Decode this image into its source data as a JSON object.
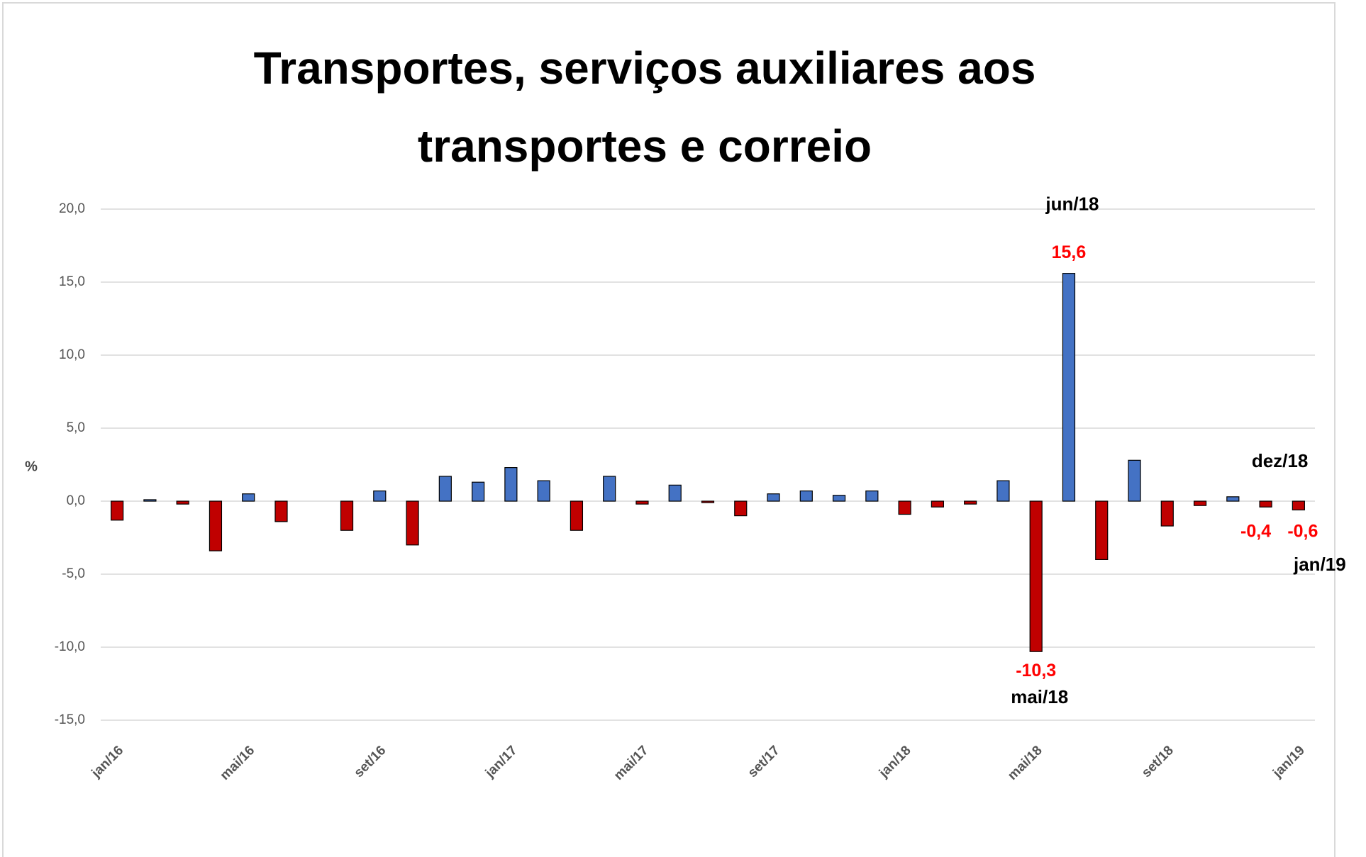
{
  "chart_data": {
    "type": "bar",
    "title": [
      "Transportes, serviços auxiliares aos",
      "transportes e correio"
    ],
    "ylabel": "%",
    "categories": [
      "jan/16",
      null,
      null,
      null,
      "mai/16",
      null,
      null,
      null,
      "set/16",
      null,
      null,
      null,
      "jan/17",
      null,
      null,
      null,
      "mai/17",
      null,
      null,
      null,
      "set/17",
      null,
      null,
      null,
      "jan/18",
      null,
      null,
      null,
      "mai/18",
      null,
      null,
      null,
      "set/18",
      null,
      null,
      null,
      "jan/19"
    ],
    "values": [
      -1.3,
      0.1,
      -0.2,
      -3.4,
      0.5,
      -1.4,
      0.0,
      -2.0,
      0.7,
      -3.0,
      1.7,
      1.3,
      2.3,
      1.4,
      -2.0,
      1.7,
      -0.2,
      1.1,
      -0.1,
      -1.0,
      0.5,
      0.7,
      0.4,
      0.7,
      -0.9,
      -0.4,
      -0.2,
      1.4,
      -10.3,
      15.6,
      -4.0,
      2.8,
      -1.7,
      -0.3,
      0.3,
      -0.4,
      -0.6
    ],
    "value_labels": [
      null,
      null,
      null,
      null,
      null,
      null,
      null,
      null,
      null,
      null,
      null,
      null,
      null,
      null,
      null,
      null,
      null,
      null,
      null,
      null,
      null,
      null,
      null,
      null,
      null,
      null,
      null,
      null,
      "-10,3",
      "15,6",
      null,
      null,
      null,
      null,
      null,
      "-0,4",
      "-0,6"
    ],
    "point_labels": [
      null,
      null,
      null,
      null,
      null,
      null,
      null,
      null,
      null,
      null,
      null,
      null,
      null,
      null,
      null,
      null,
      null,
      null,
      null,
      null,
      null,
      null,
      null,
      null,
      null,
      null,
      null,
      null,
      "mai/18",
      "jun/18",
      null,
      null,
      null,
      null,
      null,
      "dez/18",
      "jan/19"
    ],
    "positive_color": "#4472c4",
    "negative_color": "#c00000",
    "value_label_color": "#ff0000",
    "ylim": [
      -15,
      20
    ],
    "yticks": [
      {
        "value": -15,
        "label": "-15,0"
      },
      {
        "value": -10,
        "label": "-10,0"
      },
      {
        "value": -5,
        "label": "-5,0"
      },
      {
        "value": 0,
        "label": "0,0"
      },
      {
        "value": 5,
        "label": "5,0"
      },
      {
        "value": 10,
        "label": "10,0"
      },
      {
        "value": 15,
        "label": "15,0"
      },
      {
        "value": 20,
        "label": "20,0"
      }
    ],
    "grid": true
  }
}
